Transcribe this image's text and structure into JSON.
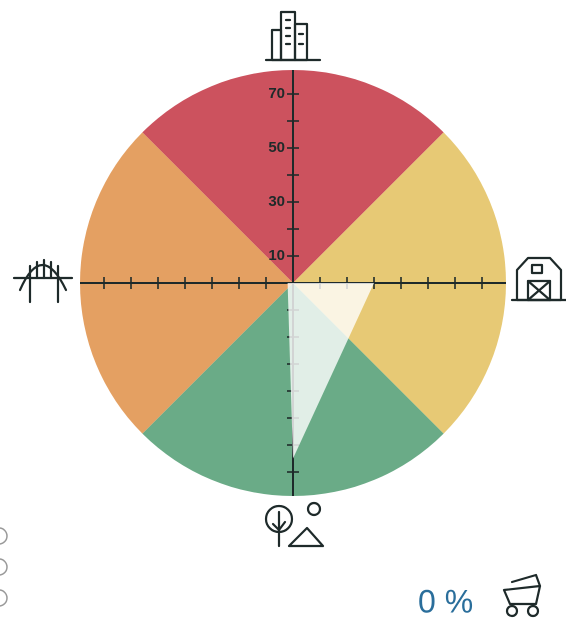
{
  "chart_data": {
    "type": "radar",
    "values": [
      0,
      30,
      65,
      2
    ],
    "sector_colors": [
      "#cc525e",
      "#e7c975",
      "#6aab87",
      "#e4a062"
    ],
    "polygon_color": "#ffffff",
    "ylim": [
      0,
      80
    ],
    "yticks": [
      10,
      30,
      50,
      70
    ],
    "minor_yticks": [
      20,
      40,
      60
    ],
    "score": "0 %"
  }
}
